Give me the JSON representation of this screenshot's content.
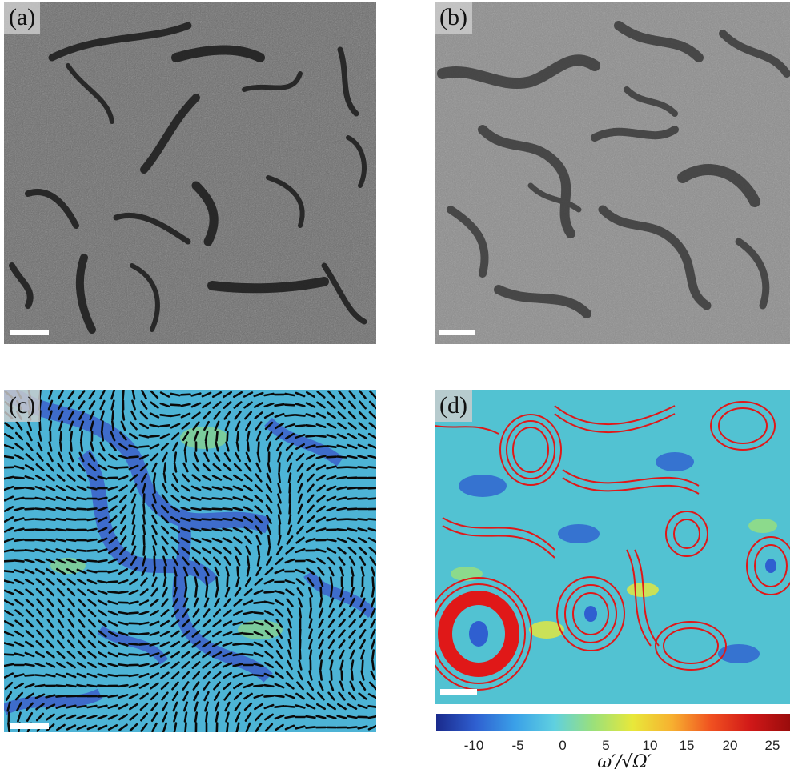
{
  "panels": {
    "a": {
      "label": "(a)"
    },
    "b": {
      "label": "(b)"
    },
    "c": {
      "label": "(c)"
    },
    "d": {
      "label": "(d)"
    }
  },
  "colorbar": {
    "ticks": [
      "-10",
      "-5",
      "0",
      "5",
      "10",
      "15",
      "20",
      "25"
    ],
    "label": "ω′/√Ω′",
    "colors": [
      "#1a2a8c",
      "#2f5fd0",
      "#3aa0e8",
      "#5fd0e0",
      "#9be07a",
      "#e8e83a",
      "#f7b030",
      "#f05020",
      "#d01818",
      "#9a0c0c"
    ]
  }
}
